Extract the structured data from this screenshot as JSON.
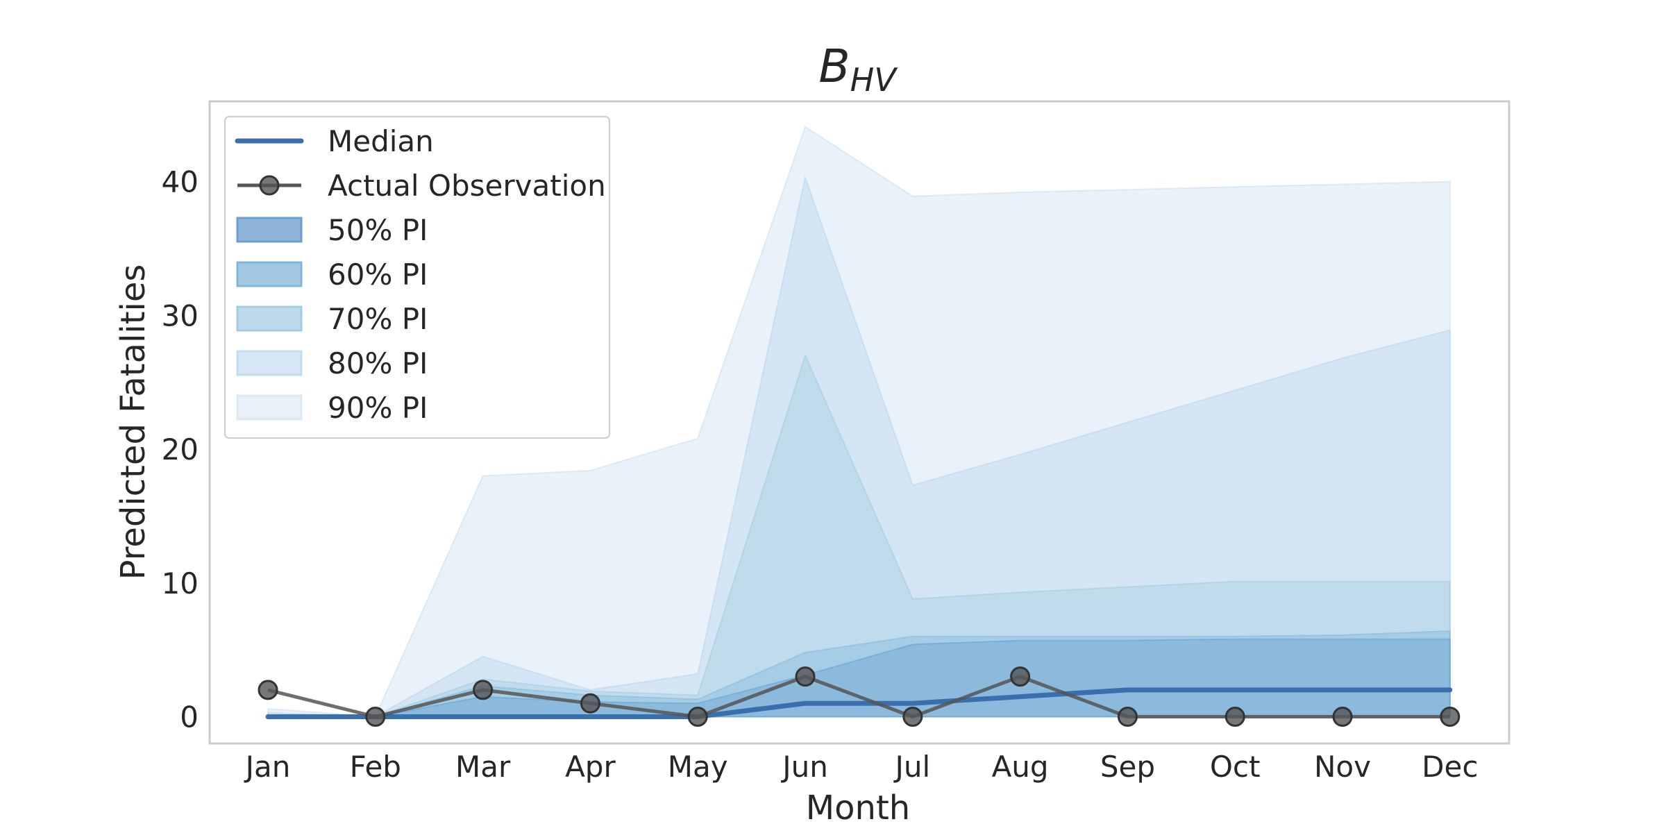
{
  "chart_data": {
    "type": "area",
    "title": {
      "main": "B",
      "sub": "HV"
    },
    "xlabel": "Month",
    "ylabel": "Predicted Fatalities",
    "categories": [
      "Jan",
      "Feb",
      "Mar",
      "Apr",
      "May",
      "Jun",
      "Jul",
      "Aug",
      "Sep",
      "Oct",
      "Nov",
      "Dec"
    ],
    "ylim": [
      -2,
      46
    ],
    "yticks": [
      0,
      10,
      20,
      30,
      40
    ],
    "grid": false,
    "legend_position": "top-left",
    "bands": [
      {
        "name": "90% PI",
        "color": "#c6dbef",
        "opacity": 0.38,
        "lower": [
          0,
          0,
          0,
          0,
          0,
          0,
          0,
          0,
          0,
          0,
          0,
          0
        ],
        "upper": [
          0.6,
          0,
          18,
          18.4,
          20.8,
          44.1,
          38.9,
          39.2,
          39.4,
          39.6,
          39.8,
          40.0
        ]
      },
      {
        "name": "80% PI",
        "color": "#b3d3ea",
        "opacity": 0.38,
        "lower": [
          0,
          0,
          0,
          0,
          0,
          0,
          0,
          0,
          0,
          0,
          0,
          0
        ],
        "upper": [
          0.3,
          0,
          4.5,
          2.0,
          3.2,
          40.3,
          17.3,
          19.6,
          22.0,
          24.4,
          26.8,
          28.9
        ]
      },
      {
        "name": "70% PI",
        "color": "#9ecae1",
        "opacity": 0.38,
        "lower": [
          0,
          0,
          0,
          0,
          0,
          0,
          0,
          0,
          0,
          0,
          0,
          0
        ],
        "upper": [
          0,
          0,
          2.8,
          1.9,
          1.6,
          27.0,
          8.8,
          9.3,
          9.7,
          10.1,
          10.1,
          10.1
        ]
      },
      {
        "name": "60% PI",
        "color": "#7fb6dc",
        "opacity": 0.38,
        "lower": [
          0,
          0,
          0,
          0,
          0,
          0,
          0,
          0,
          0,
          0,
          0,
          0
        ],
        "upper": [
          0,
          0,
          2.3,
          1.6,
          1.3,
          4.8,
          6.0,
          6.0,
          6.0,
          6.0,
          6.1,
          6.4
        ]
      },
      {
        "name": "50% PI",
        "color": "#5f9bd0",
        "opacity": 0.38,
        "lower": [
          0,
          0,
          0,
          0,
          0,
          0,
          0,
          0,
          0,
          0,
          0,
          0
        ],
        "upper": [
          0,
          0,
          1.5,
          1.1,
          1.0,
          3.1,
          5.4,
          5.7,
          5.7,
          5.8,
          5.8,
          5.8
        ]
      }
    ],
    "series": [
      {
        "name": "Median",
        "color": "#3a6fae",
        "values": [
          0,
          0,
          0,
          0,
          0,
          1,
          1,
          1.5,
          2,
          2,
          2,
          2
        ]
      },
      {
        "name": "Actual Observation",
        "color": "#555555",
        "values": [
          2,
          0,
          2,
          1,
          0,
          3,
          0,
          3,
          0,
          0,
          0,
          0
        ]
      }
    ],
    "legend": [
      {
        "label": "Median",
        "kind": "line",
        "color": "#3a6fae"
      },
      {
        "label": "Actual Observation",
        "kind": "marker-line",
        "color": "#555555"
      },
      {
        "label": "50% PI",
        "kind": "patch",
        "color": "#8fb4d9",
        "edge": "#6a9fcf"
      },
      {
        "label": "60% PI",
        "kind": "patch",
        "color": "#a3c9e4",
        "edge": "#80b6dd"
      },
      {
        "label": "70% PI",
        "kind": "patch",
        "color": "#bcdaea",
        "edge": "#a2cbe4"
      },
      {
        "label": "80% PI",
        "kind": "patch",
        "color": "#d6e6f3",
        "edge": "#c3dcef"
      },
      {
        "label": "90% PI",
        "kind": "patch",
        "color": "#e8f0f8",
        "edge": "#dbe8f4"
      }
    ]
  }
}
